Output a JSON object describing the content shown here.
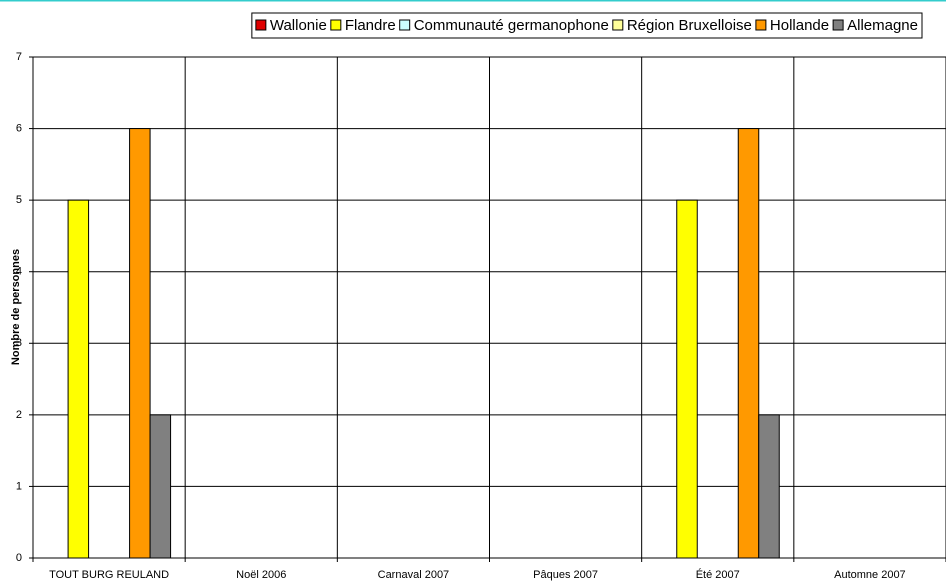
{
  "chart_data": {
    "type": "bar",
    "y_label": "Nombre de personnes",
    "categories": [
      "TOUT BURG REULAND",
      "Noël 2006",
      "Carnaval 2007",
      "Pâques 2007",
      "Été 2007",
      "Automne 2007"
    ],
    "series": [
      {
        "name": "Wallonie",
        "color": "#e00000",
        "values": [
          0,
          0,
          0,
          0,
          0,
          0
        ]
      },
      {
        "name": "Flandre",
        "color": "#ffff00",
        "values": [
          5,
          0,
          0,
          0,
          5,
          0
        ]
      },
      {
        "name": "Communauté germanophone",
        "color": "#ccffff",
        "values": [
          0,
          0,
          0,
          0,
          0,
          0
        ]
      },
      {
        "name": "Région Bruxelloise",
        "color": "#ffff99",
        "values": [
          0,
          0,
          0,
          0,
          0,
          0
        ]
      },
      {
        "name": "Hollande",
        "color": "#ff9900",
        "values": [
          6,
          0,
          0,
          0,
          6,
          0
        ]
      },
      {
        "name": "Allemagne",
        "color": "#808080",
        "values": [
          2,
          0,
          0,
          0,
          2,
          0
        ]
      }
    ],
    "ylim": [
      0,
      7
    ],
    "yticks": [
      0,
      1,
      2,
      3,
      4,
      5,
      6,
      7
    ],
    "grid": true,
    "legend": "top"
  }
}
